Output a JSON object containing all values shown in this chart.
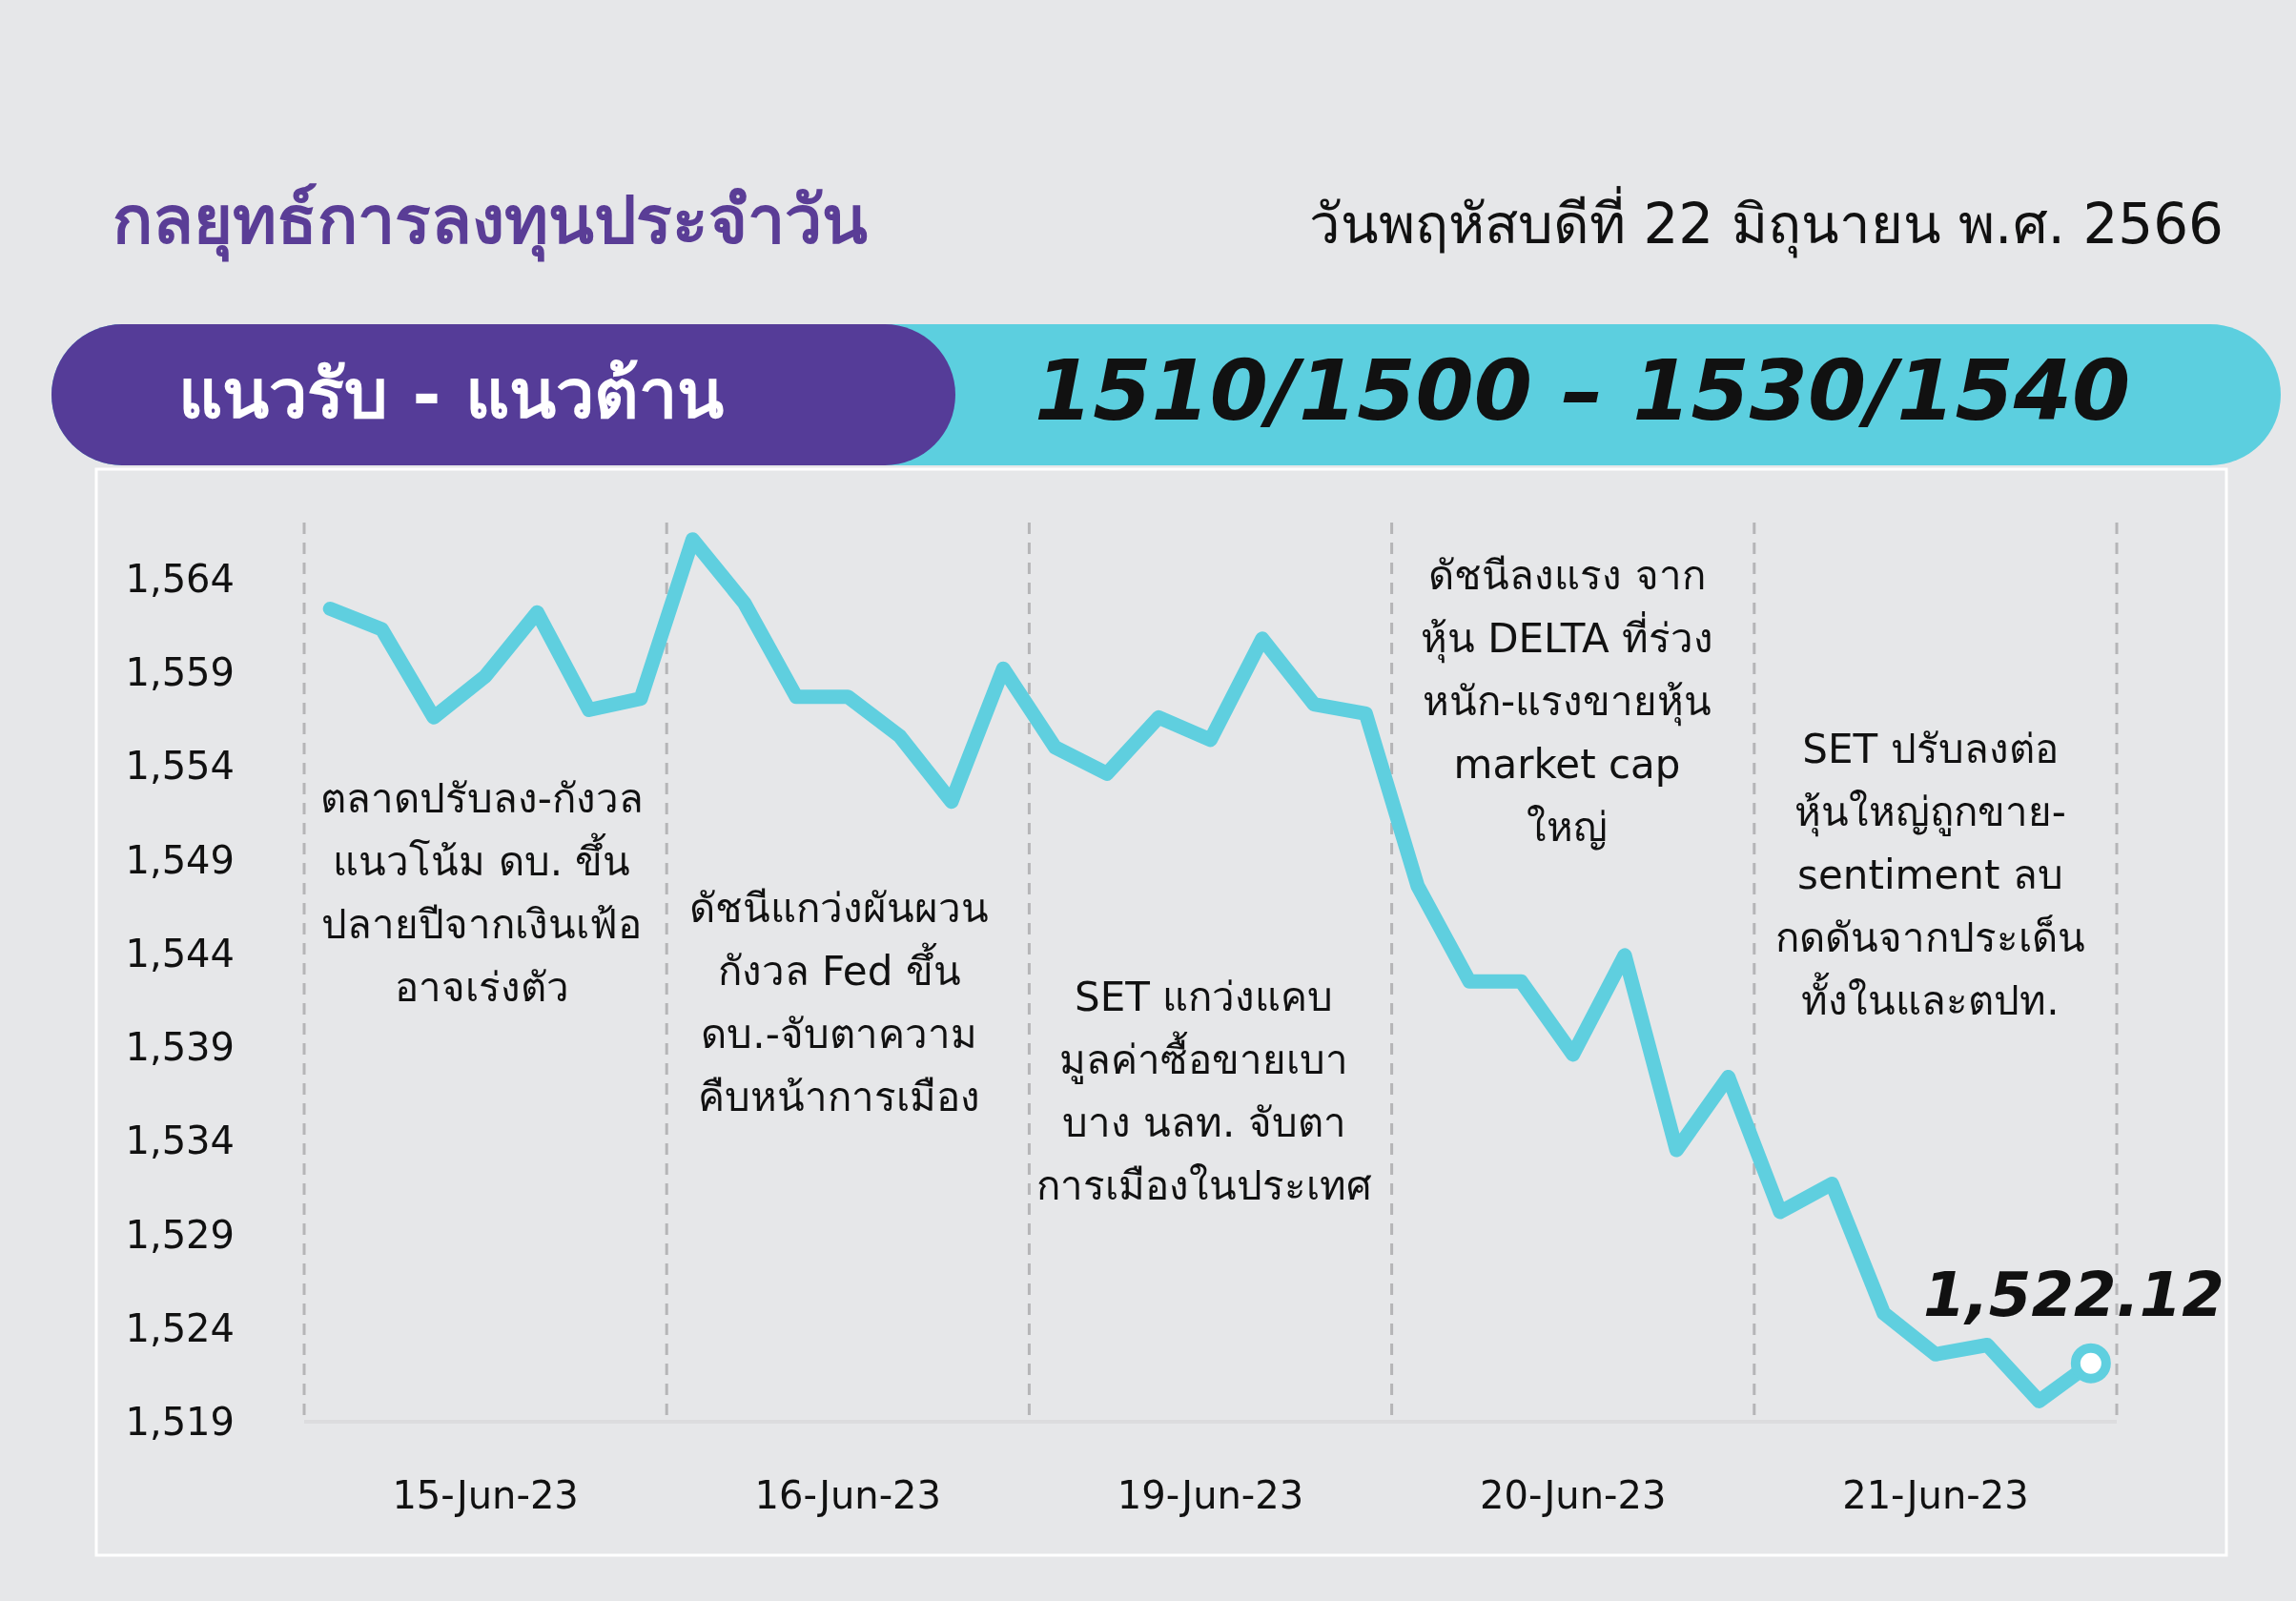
{
  "chart_data": {
    "type": "line",
    "title": "กลยุทธ์การลงทุนประจำวัน",
    "subtitle": "วันพฤหัสบดีที่ 22 มิถุนายน พ.ศ. 2566",
    "annotations": [
      "แนวรับ - แนวต้าน",
      "1510/1500 – 1530/1540",
      "ตลาดปรับลง-กังวล\nแนวโน้ม ดบ. ขึ้น\nปลายปีจากเงินเฟ้อ\nอาจเร่งตัว",
      "ดัชนีแกว่งผันผวน\nกังวล Fed ขึ้น\nดบ.-จับตาความ\nคืบหน้าการเมือง",
      "SET แกว่งแคบ\nมูลค่าซื้อขายเบา\nบาง นลท. จับตา\nการเมืองในประเทศ",
      "ดัชนีลงแรง จาก\nหุ้น DELTA ที่ร่วง\nหนัก-แรงขายหุ้น\nmarket cap\nใหญ่",
      "SET ปรับลงต่อ\nหุ้นใหญ่ถูกขาย-\nsentiment ลบ\nกดดันจากประเด็น\nทั้งในและตปท."
    ],
    "categories": [
      null,
      null,
      null,
      "15-Jun-23",
      null,
      null,
      null,
      null,
      null,
      null,
      "16-Jun-23",
      null,
      null,
      null,
      null,
      null,
      null,
      "19-Jun-23",
      null,
      null,
      null,
      null,
      null,
      null,
      "20-Jun-23",
      null,
      null,
      null,
      null,
      null,
      null,
      "21-Jun-23",
      null,
      null,
      null
    ],
    "series": [
      {
        "color": "#5fcfdf",
        "values": [
          1562.4,
          1561.3,
          1556.6,
          1558.8,
          1562.2,
          1557.0,
          1557.6,
          1566.1,
          1562.7,
          1557.7,
          1557.7,
          1555.6,
          1552.1,
          1559.2,
          1555.0,
          1553.6,
          1556.6,
          1555.4,
          1560.8,
          1557.3,
          1556.8,
          1547.6,
          1542.5,
          1542.5,
          1538.6,
          1543.9,
          1533.5,
          1537.4,
          1530.2,
          1531.7,
          1524.8,
          1522.6,
          1523.1,
          1520.1,
          1522.12
        ],
        "value_labels": [
          null,
          null,
          null,
          null,
          null,
          null,
          null,
          null,
          null,
          null,
          null,
          null,
          null,
          null,
          null,
          null,
          null,
          null,
          null,
          null,
          null,
          null,
          null,
          null,
          null,
          null,
          null,
          null,
          null,
          null,
          null,
          null,
          null,
          null,
          "1,522.12"
        ]
      }
    ],
    "ylim": [
      1519,
      1567
    ],
    "yticks": [
      {
        "value": 1519,
        "label": "1,519"
      },
      {
        "value": 1524,
        "label": "1,524"
      },
      {
        "value": 1529,
        "label": "1,529"
      },
      {
        "value": 1534,
        "label": "1,534"
      },
      {
        "value": 1539,
        "label": "1,539"
      },
      {
        "value": 1544,
        "label": "1,544"
      },
      {
        "value": 1549,
        "label": "1,549"
      },
      {
        "value": 1554,
        "label": "1,554"
      },
      {
        "value": 1559,
        "label": "1,559"
      },
      {
        "value": 1564,
        "label": "1,564"
      }
    ],
    "grid": false,
    "marker": "none",
    "line_style": "solid"
  }
}
